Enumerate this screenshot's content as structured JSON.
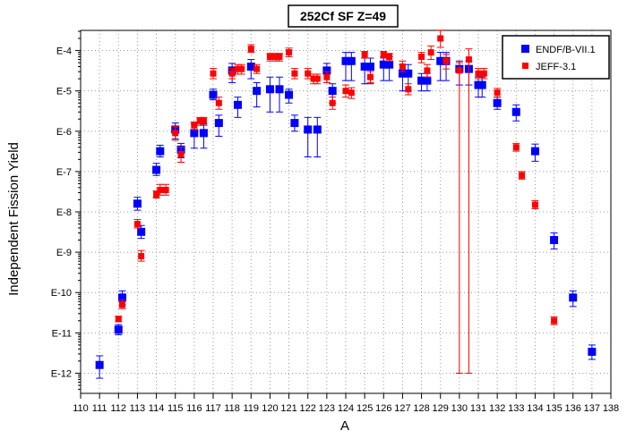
{
  "chart_data": {
    "type": "scatter",
    "title": "252Cf SF Z=49",
    "xlabel": "A",
    "ylabel": "Independent Fission Yield",
    "xlim": [
      110,
      138
    ],
    "ylim_log10": [
      -12.5,
      -3.5
    ],
    "y_tick_exponents": [
      -4,
      -5,
      -6,
      -7,
      -8,
      -9,
      -10,
      -11,
      -12
    ],
    "y_tick_labels": [
      "E-4",
      "E-5",
      "E-6",
      "E-7",
      "E-8",
      "E-9",
      "E-10",
      "E-11",
      "E-12"
    ],
    "x_ticks": [
      110,
      111,
      112,
      113,
      114,
      115,
      116,
      117,
      118,
      119,
      120,
      121,
      122,
      123,
      124,
      125,
      126,
      127,
      128,
      129,
      130,
      131,
      132,
      133,
      134,
      135,
      136,
      137,
      138
    ],
    "grid": true,
    "legend_position": "top-right",
    "series": [
      {
        "name": "ENDF/B-VII.1",
        "color": "#0000ff",
        "marker": "square",
        "points": [
          {
            "x": 111,
            "y": 1.6e-12,
            "lo": 7.5e-13,
            "hi": 2.7e-12
          },
          {
            "x": 112,
            "y": 1.2e-11,
            "lo": 9e-12,
            "hi": 1.6e-11
          },
          {
            "x": 112.2,
            "y": 7.5e-11,
            "lo": 5e-11,
            "hi": 1.1e-10
          },
          {
            "x": 113,
            "y": 1.6e-08,
            "lo": 1.1e-08,
            "hi": 2.3e-08
          },
          {
            "x": 113.2,
            "y": 3.2e-09,
            "lo": 2.2e-09,
            "hi": 4.6e-09
          },
          {
            "x": 114,
            "y": 1.1e-07,
            "lo": 8e-08,
            "hi": 1.6e-07
          },
          {
            "x": 114.2,
            "y": 3.2e-07,
            "lo": 2.3e-07,
            "hi": 4.5e-07
          },
          {
            "x": 115,
            "y": 1.1e-06,
            "lo": 6.5e-07,
            "hi": 1.6e-06
          },
          {
            "x": 115.3,
            "y": 3.5e-07,
            "lo": 2.2e-07,
            "hi": 5e-07
          },
          {
            "x": 116,
            "y": 9e-07,
            "lo": 3.8e-07,
            "hi": 1.5e-06
          },
          {
            "x": 116.5,
            "y": 9e-07,
            "lo": 3.8e-07,
            "hi": 1.5e-06
          },
          {
            "x": 117,
            "y": 8e-06,
            "lo": 6e-06,
            "hi": 1.1e-05
          },
          {
            "x": 117.3,
            "y": 1.6e-06,
            "lo": 7.5e-07,
            "hi": 2.5e-06
          },
          {
            "x": 118,
            "y": 3.2e-05,
            "lo": 1.6e-05,
            "hi": 4.8e-05
          },
          {
            "x": 118.3,
            "y": 4.5e-06,
            "lo": 2.2e-06,
            "hi": 7e-06
          },
          {
            "x": 119,
            "y": 4e-05,
            "lo": 2e-05,
            "hi": 6e-05
          },
          {
            "x": 119.3,
            "y": 1e-05,
            "lo": 4e-06,
            "hi": 1.6e-05
          },
          {
            "x": 120,
            "y": 1.1e-05,
            "lo": 3e-06,
            "hi": 2.2e-05
          },
          {
            "x": 120.5,
            "y": 1.1e-05,
            "lo": 3e-06,
            "hi": 2.2e-05
          },
          {
            "x": 121,
            "y": 8e-06,
            "lo": 5e-06,
            "hi": 1.1e-05
          },
          {
            "x": 121.3,
            "y": 1.6e-06,
            "lo": 1e-06,
            "hi": 2.5e-06
          },
          {
            "x": 122,
            "y": 1.1e-06,
            "lo": 2.3e-07,
            "hi": 2.2e-06
          },
          {
            "x": 122.5,
            "y": 1.1e-06,
            "lo": 2.3e-07,
            "hi": 2.2e-06
          },
          {
            "x": 123,
            "y": 3.2e-05,
            "lo": 1.6e-05,
            "hi": 4.8e-05
          },
          {
            "x": 123.3,
            "y": 1e-05,
            "lo": 5e-06,
            "hi": 1.5e-05
          },
          {
            "x": 124,
            "y": 5.5e-05,
            "lo": 1.8e-05,
            "hi": 9e-05
          },
          {
            "x": 124.3,
            "y": 5.5e-05,
            "lo": 1.8e-05,
            "hi": 9e-05
          },
          {
            "x": 125,
            "y": 4e-05,
            "lo": 1.5e-05,
            "hi": 6.5e-05
          },
          {
            "x": 125.3,
            "y": 4e-05,
            "lo": 1.5e-05,
            "hi": 6.5e-05
          },
          {
            "x": 126,
            "y": 4.5e-05,
            "lo": 1.8e-05,
            "hi": 7e-05
          },
          {
            "x": 126.3,
            "y": 4.5e-05,
            "lo": 1.8e-05,
            "hi": 7e-05
          },
          {
            "x": 127,
            "y": 2.7e-05,
            "lo": 1e-05,
            "hi": 4.5e-05
          },
          {
            "x": 127.3,
            "y": 2.7e-05,
            "lo": 1e-05,
            "hi": 4.5e-05
          },
          {
            "x": 128,
            "y": 1.8e-05,
            "lo": 1e-05,
            "hi": 2.7e-05
          },
          {
            "x": 128.3,
            "y": 1.8e-05,
            "lo": 1e-05,
            "hi": 2.7e-05
          },
          {
            "x": 129,
            "y": 5.5e-05,
            "lo": 1.8e-05,
            "hi": 9e-05
          },
          {
            "x": 129.3,
            "y": 5.5e-05,
            "lo": 1.8e-05,
            "hi": 9e-05
          },
          {
            "x": 130,
            "y": 3.5e-05,
            "lo": 1.4e-05,
            "hi": 5.5e-05
          },
          {
            "x": 130.5,
            "y": 3.5e-05,
            "lo": 1.4e-05,
            "hi": 5.5e-05
          },
          {
            "x": 131,
            "y": 1.4e-05,
            "lo": 7e-06,
            "hi": 2.2e-05
          },
          {
            "x": 131.2,
            "y": 1.4e-05,
            "lo": 7e-06,
            "hi": 2.2e-05
          },
          {
            "x": 132,
            "y": 5e-06,
            "lo": 3.5e-06,
            "hi": 7e-06
          },
          {
            "x": 133,
            "y": 3e-06,
            "lo": 1.8e-06,
            "hi": 4.5e-06
          },
          {
            "x": 134,
            "y": 3.2e-07,
            "lo": 1.8e-07,
            "hi": 4.8e-07
          },
          {
            "x": 135,
            "y": 2e-09,
            "lo": 1.2e-09,
            "hi": 3e-09
          },
          {
            "x": 136,
            "y": 7.5e-11,
            "lo": 4.5e-11,
            "hi": 1.1e-10
          },
          {
            "x": 137,
            "y": 3.4e-12,
            "lo": 2.2e-12,
            "hi": 5e-12
          }
        ]
      },
      {
        "name": "JEFF-3.1",
        "color": "#ff0000",
        "marker": "square",
        "points": [
          {
            "x": 112,
            "y": 2.2e-11,
            "lo": 1.9e-11,
            "hi": 2.6e-11
          },
          {
            "x": 112.2,
            "y": 5e-11,
            "lo": 4e-11,
            "hi": 6.5e-11
          },
          {
            "x": 113,
            "y": 5e-09,
            "lo": 4e-09,
            "hi": 6.5e-09
          },
          {
            "x": 113.2,
            "y": 8e-10,
            "lo": 6e-10,
            "hi": 1.1e-09
          },
          {
            "x": 114,
            "y": 2.7e-08,
            "lo": 2.2e-08,
            "hi": 3.3e-08
          },
          {
            "x": 114.2,
            "y": 3.5e-08,
            "lo": 2.6e-08,
            "hi": 4.8e-08
          },
          {
            "x": 114.5,
            "y": 3.5e-08,
            "lo": 2.6e-08,
            "hi": 4.8e-08
          },
          {
            "x": 115,
            "y": 9e-07,
            "lo": 6e-07,
            "hi": 1.3e-06
          },
          {
            "x": 115.3,
            "y": 2.7e-07,
            "lo": 1.7e-07,
            "hi": 4e-07
          },
          {
            "x": 116,
            "y": 1.4e-06,
            "lo": 1.1e-06,
            "hi": 1.7e-06
          },
          {
            "x": 116.3,
            "y": 1.8e-06,
            "lo": 1.4e-06,
            "hi": 2.2e-06
          },
          {
            "x": 116.5,
            "y": 1.8e-06,
            "lo": 1.4e-06,
            "hi": 2.2e-06
          },
          {
            "x": 117,
            "y": 2.7e-05,
            "lo": 2e-05,
            "hi": 3.6e-05
          },
          {
            "x": 117.3,
            "y": 5e-06,
            "lo": 3.5e-06,
            "hi": 7e-06
          },
          {
            "x": 118,
            "y": 2.7e-05,
            "lo": 2e-05,
            "hi": 3.6e-05
          },
          {
            "x": 118.3,
            "y": 3.5e-05,
            "lo": 2.6e-05,
            "hi": 4.5e-05
          },
          {
            "x": 118.5,
            "y": 3.5e-05,
            "lo": 2.6e-05,
            "hi": 4.5e-05
          },
          {
            "x": 119,
            "y": 0.00011,
            "lo": 9e-05,
            "hi": 0.00014
          },
          {
            "x": 119.3,
            "y": 3.5e-05,
            "lo": 2.7e-05,
            "hi": 4.5e-05
          },
          {
            "x": 120,
            "y": 7e-05,
            "lo": 5.5e-05,
            "hi": 8.5e-05
          },
          {
            "x": 120.3,
            "y": 7e-05,
            "lo": 5.5e-05,
            "hi": 8.5e-05
          },
          {
            "x": 120.5,
            "y": 7e-05,
            "lo": 5.5e-05,
            "hi": 8.5e-05
          },
          {
            "x": 121,
            "y": 9e-05,
            "lo": 7e-05,
            "hi": 0.000115
          },
          {
            "x": 121.3,
            "y": 2.7e-05,
            "lo": 2e-05,
            "hi": 3.6e-05
          },
          {
            "x": 122,
            "y": 2.7e-05,
            "lo": 2e-05,
            "hi": 3.6e-05
          },
          {
            "x": 122.3,
            "y": 2e-05,
            "lo": 1.5e-05,
            "hi": 2.6e-05
          },
          {
            "x": 122.5,
            "y": 2e-05,
            "lo": 1.5e-05,
            "hi": 2.6e-05
          },
          {
            "x": 123,
            "y": 2.2e-05,
            "lo": 1.6e-05,
            "hi": 3e-05
          },
          {
            "x": 123.3,
            "y": 5e-06,
            "lo": 3.5e-06,
            "hi": 7e-06
          },
          {
            "x": 124,
            "y": 1e-05,
            "lo": 7e-06,
            "hi": 1.4e-05
          },
          {
            "x": 124.3,
            "y": 9e-06,
            "lo": 6.5e-06,
            "hi": 1.2e-05
          },
          {
            "x": 125,
            "y": 8e-05,
            "lo": 6.5e-05,
            "hi": 9.5e-05
          },
          {
            "x": 125.3,
            "y": 2.2e-05,
            "lo": 1.6e-05,
            "hi": 3e-05
          },
          {
            "x": 126,
            "y": 8e-05,
            "lo": 6.5e-05,
            "hi": 9.5e-05
          },
          {
            "x": 126.3,
            "y": 7e-05,
            "lo": 5.5e-05,
            "hi": 8.5e-05
          },
          {
            "x": 127,
            "y": 4e-05,
            "lo": 3e-05,
            "hi": 5.5e-05
          },
          {
            "x": 127.3,
            "y": 1.1e-05,
            "lo": 8e-06,
            "hi": 1.5e-05
          },
          {
            "x": 128,
            "y": 7e-05,
            "lo": 5e-05,
            "hi": 9e-05
          },
          {
            "x": 128.3,
            "y": 3.2e-05,
            "lo": 2.2e-05,
            "hi": 4.5e-05
          },
          {
            "x": 128.5,
            "y": 9e-05,
            "lo": 6e-05,
            "hi": 0.00013
          },
          {
            "x": 129,
            "y": 0.0002,
            "lo": 0.00012,
            "hi": 0.00032
          },
          {
            "x": 129.3,
            "y": 5.5e-05,
            "lo": 3.5e-05,
            "hi": 8e-05
          },
          {
            "x": 130,
            "y": 3.2e-05,
            "lo": 1e-12,
            "hi": 5e-05
          },
          {
            "x": 130.5,
            "y": 6e-05,
            "lo": 1e-12,
            "hi": 0.00011
          },
          {
            "x": 131,
            "y": 2.7e-05,
            "lo": 2e-05,
            "hi": 3.6e-05
          },
          {
            "x": 131.3,
            "y": 2.7e-05,
            "lo": 2e-05,
            "hi": 3.6e-05
          },
          {
            "x": 132,
            "y": 9e-06,
            "lo": 7e-06,
            "hi": 1.15e-05
          },
          {
            "x": 133,
            "y": 4e-07,
            "lo": 3.2e-07,
            "hi": 5e-07
          },
          {
            "x": 133.3,
            "y": 8e-08,
            "lo": 6.5e-08,
            "hi": 1e-07
          },
          {
            "x": 134,
            "y": 1.5e-08,
            "lo": 1.2e-08,
            "hi": 1.9e-08
          },
          {
            "x": 135,
            "y": 2e-11,
            "lo": 1.6e-11,
            "hi": 2.5e-11
          }
        ]
      }
    ]
  }
}
